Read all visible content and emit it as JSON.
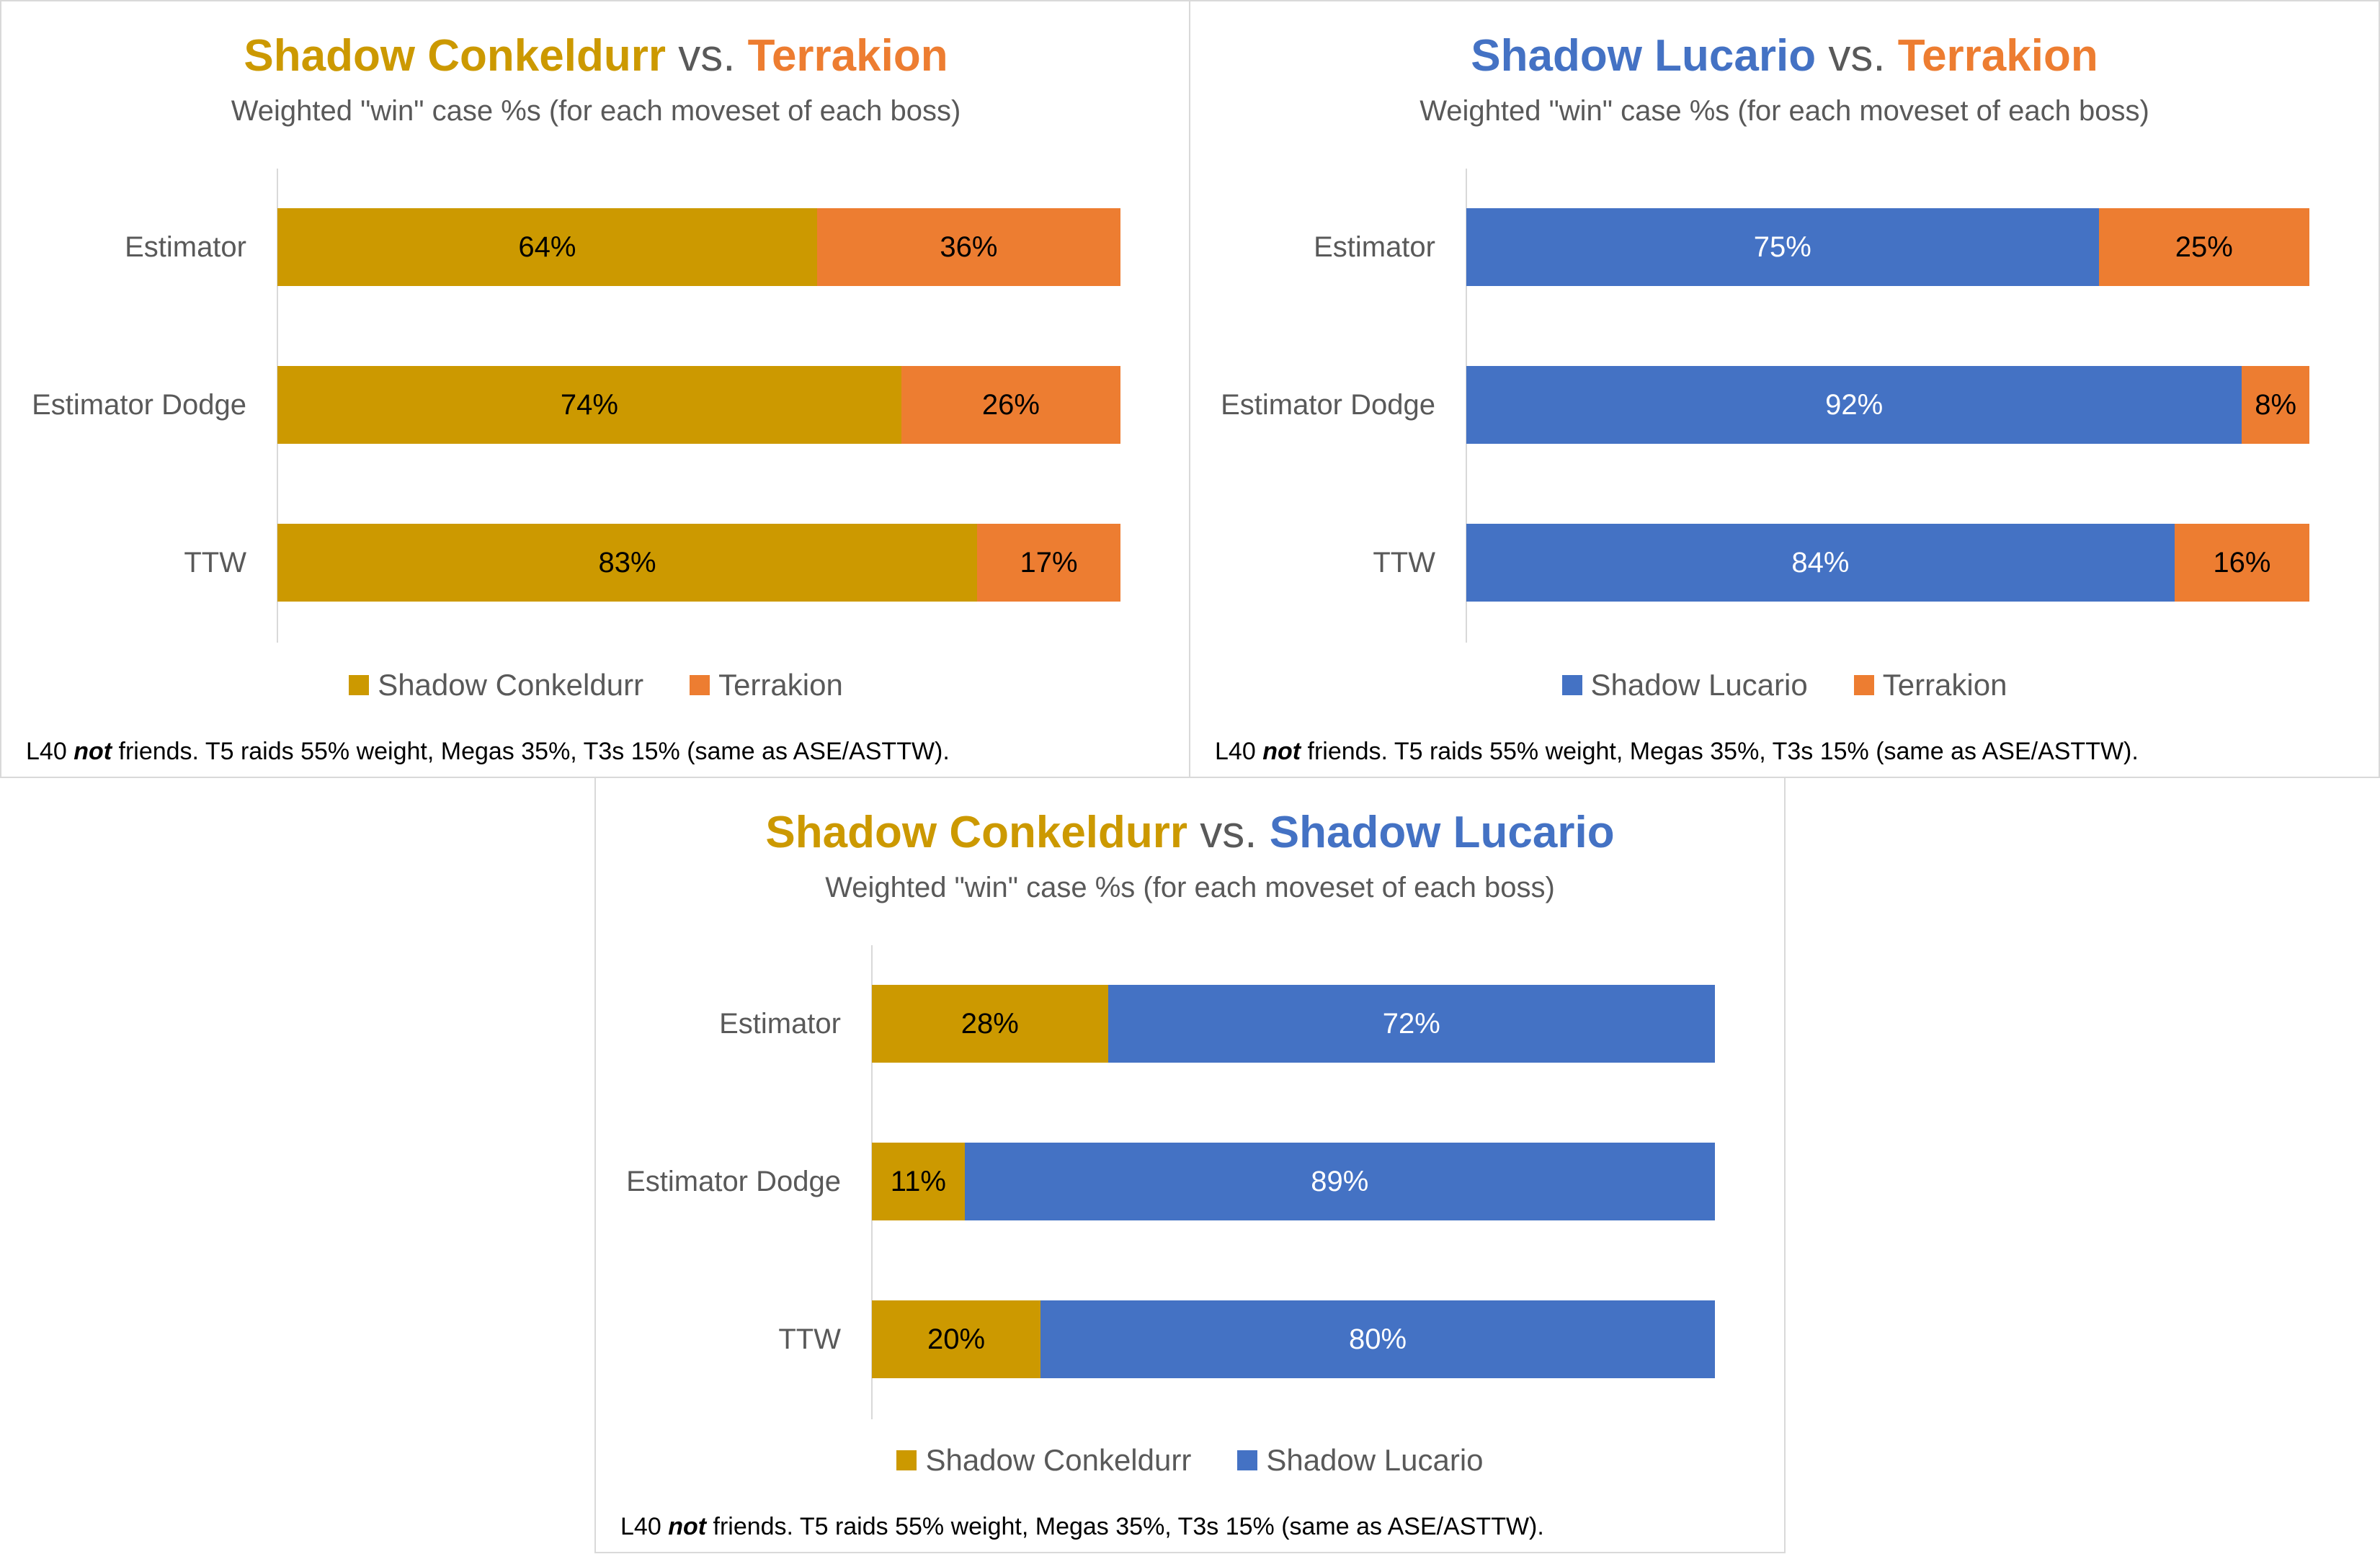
{
  "colors": {
    "conkeldurr": "#CC9900",
    "lucario": "#4472C4",
    "terrakion": "#ED7D31",
    "text_dark": "#000000",
    "text_light": "#FFFFFF"
  },
  "chart_data": [
    {
      "type": "bar",
      "orientation": "horizontal",
      "stacked": "100%",
      "title": {
        "left": "Shadow Conkeldurr",
        "vs": "vs.",
        "right": "Terrakion"
      },
      "subtitle": "Weighted \"win\" case %s (for each moveset of each boss)",
      "categories": [
        "Estimator",
        "Estimator Dodge",
        "TTW"
      ],
      "series": [
        {
          "name": "Shadow Conkeldurr",
          "color": "#CC9900",
          "label_color": "#000000",
          "values": [
            64,
            74,
            83
          ],
          "labels": [
            "64%",
            "74%",
            "83%"
          ]
        },
        {
          "name": "Terrakion",
          "color": "#ED7D31",
          "label_color": "#000000",
          "values": [
            36,
            26,
            17
          ],
          "labels": [
            "36%",
            "26%",
            "17%"
          ]
        }
      ],
      "legend": [
        "Shadow Conkeldurr",
        "Terrakion"
      ],
      "legend_position": "bottom",
      "footnote": {
        "pre": "L40 ",
        "emph": "not",
        "post": " friends. T5 raids 55% weight, Megas 35%, T3s 15% (same as ASE/ASTTW)."
      }
    },
    {
      "type": "bar",
      "orientation": "horizontal",
      "stacked": "100%",
      "title": {
        "left": "Shadow Lucario",
        "vs": "vs.",
        "right": "Terrakion"
      },
      "subtitle": "Weighted \"win\" case %s (for each moveset of each boss)",
      "categories": [
        "Estimator",
        "Estimator Dodge",
        "TTW"
      ],
      "series": [
        {
          "name": "Shadow Lucario",
          "color": "#4472C4",
          "label_color": "#FFFFFF",
          "values": [
            75,
            92,
            84
          ],
          "labels": [
            "75%",
            "92%",
            "84%"
          ]
        },
        {
          "name": "Terrakion",
          "color": "#ED7D31",
          "label_color": "#000000",
          "values": [
            25,
            8,
            16
          ],
          "labels": [
            "25%",
            "8%",
            "16%"
          ]
        }
      ],
      "legend": [
        "Shadow Lucario",
        "Terrakion"
      ],
      "legend_position": "bottom",
      "footnote": {
        "pre": "L40 ",
        "emph": "not",
        "post": " friends. T5 raids 55% weight, Megas 35%, T3s 15% (same as ASE/ASTTW)."
      }
    },
    {
      "type": "bar",
      "orientation": "horizontal",
      "stacked": "100%",
      "title": {
        "left": "Shadow Conkeldurr",
        "vs": "vs.",
        "right": "Shadow Lucario"
      },
      "subtitle": "Weighted \"win\" case %s (for each moveset of each boss)",
      "categories": [
        "Estimator",
        "Estimator Dodge",
        "TTW"
      ],
      "series": [
        {
          "name": "Shadow Conkeldurr",
          "color": "#CC9900",
          "label_color": "#000000",
          "values": [
            28,
            11,
            20
          ],
          "labels": [
            "28%",
            "11%",
            "20%"
          ]
        },
        {
          "name": "Shadow Lucario",
          "color": "#4472C4",
          "label_color": "#FFFFFF",
          "values": [
            72,
            89,
            80
          ],
          "labels": [
            "72%",
            "89%",
            "80%"
          ]
        }
      ],
      "legend": [
        "Shadow Conkeldurr",
        "Shadow Lucario"
      ],
      "legend_position": "bottom",
      "footnote": {
        "pre": "L40 ",
        "emph": "not",
        "post": " friends. T5 raids 55% weight, Megas 35%, T3s 15% (same as ASE/ASTTW)."
      }
    }
  ]
}
